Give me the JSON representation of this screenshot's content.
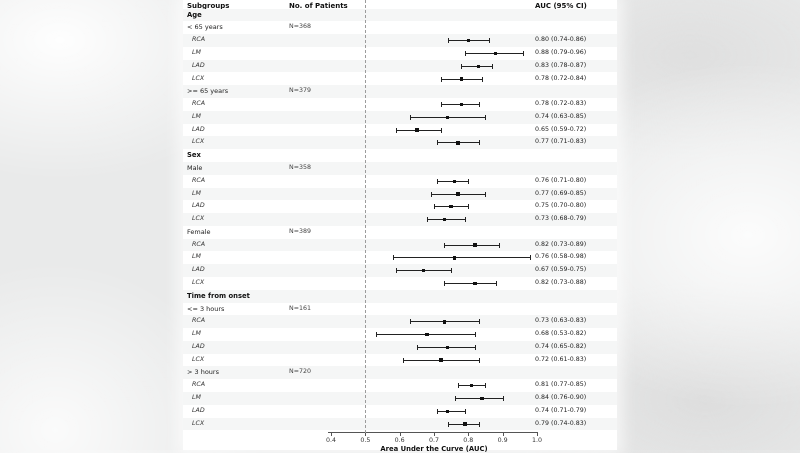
{
  "columns": {
    "subgroups": "Subgroups",
    "patients": "No. of Patients",
    "auc": "AUC (95% CI)"
  },
  "colors": {
    "stripe": "#f5f6f6",
    "marker": "#111111",
    "ci_line": "#222222",
    "reference_dash": "#9c9c9c"
  },
  "chart_data": {
    "type": "forest",
    "xlabel": "Area Under the Curve (AUC)",
    "xlim": [
      0.4,
      1.0
    ],
    "x_ticks": [
      0.4,
      0.5,
      0.6,
      0.7,
      0.8,
      0.9,
      1.0
    ],
    "reference_line": 0.5,
    "column_headers": [
      "Subgroups",
      "No. of Patients",
      "AUC (95% CI)"
    ],
    "sections": [
      {
        "title": "Age",
        "subgroups": [
          {
            "label": "< 65 years",
            "n_label": "N=368",
            "vessels": [
              {
                "name": "RCA",
                "auc": 0.8,
                "ci_low": 0.74,
                "ci_high": 0.86,
                "display": "0.80 (0.74-0.86)"
              },
              {
                "name": "LM",
                "auc": 0.88,
                "ci_low": 0.79,
                "ci_high": 0.96,
                "display": "0.88 (0.79-0.96)"
              },
              {
                "name": "LAD",
                "auc": 0.83,
                "ci_low": 0.78,
                "ci_high": 0.87,
                "display": "0.83 (0.78-0.87)"
              },
              {
                "name": "LCX",
                "auc": 0.78,
                "ci_low": 0.72,
                "ci_high": 0.84,
                "display": "0.78 (0.72-0.84)"
              }
            ]
          },
          {
            "label": ">= 65 years",
            "n_label": "N=379",
            "vessels": [
              {
                "name": "RCA",
                "auc": 0.78,
                "ci_low": 0.72,
                "ci_high": 0.83,
                "display": "0.78 (0.72-0.83)"
              },
              {
                "name": "LM",
                "auc": 0.74,
                "ci_low": 0.63,
                "ci_high": 0.85,
                "display": "0.74 (0.63-0.85)"
              },
              {
                "name": "LAD",
                "auc": 0.65,
                "ci_low": 0.59,
                "ci_high": 0.72,
                "display": "0.65 (0.59-0.72)"
              },
              {
                "name": "LCX",
                "auc": 0.77,
                "ci_low": 0.71,
                "ci_high": 0.83,
                "display": "0.77 (0.71-0.83)"
              }
            ]
          }
        ]
      },
      {
        "title": "Sex",
        "subgroups": [
          {
            "label": "Male",
            "n_label": "N=358",
            "vessels": [
              {
                "name": "RCA",
                "auc": 0.76,
                "ci_low": 0.71,
                "ci_high": 0.8,
                "display": "0.76 (0.71-0.80)"
              },
              {
                "name": "LM",
                "auc": 0.77,
                "ci_low": 0.69,
                "ci_high": 0.85,
                "display": "0.77 (0.69-0.85)"
              },
              {
                "name": "LAD",
                "auc": 0.75,
                "ci_low": 0.7,
                "ci_high": 0.8,
                "display": "0.75 (0.70-0.80)"
              },
              {
                "name": "LCX",
                "auc": 0.73,
                "ci_low": 0.68,
                "ci_high": 0.79,
                "display": "0.73 (0.68-0.79)"
              }
            ]
          },
          {
            "label": "Female",
            "n_label": "N=389",
            "vessels": [
              {
                "name": "RCA",
                "auc": 0.82,
                "ci_low": 0.73,
                "ci_high": 0.89,
                "display": "0.82 (0.73-0.89)"
              },
              {
                "name": "LM",
                "auc": 0.76,
                "ci_low": 0.58,
                "ci_high": 0.98,
                "display": "0.76 (0.58-0.98)"
              },
              {
                "name": "LAD",
                "auc": 0.67,
                "ci_low": 0.59,
                "ci_high": 0.75,
                "display": "0.67 (0.59-0.75)"
              },
              {
                "name": "LCX",
                "auc": 0.82,
                "ci_low": 0.73,
                "ci_high": 0.88,
                "display": "0.82 (0.73-0.88)"
              }
            ]
          }
        ]
      },
      {
        "title": "Time from onset",
        "subgroups": [
          {
            "label": "<= 3 hours",
            "n_label": "N=161",
            "vessels": [
              {
                "name": "RCA",
                "auc": 0.73,
                "ci_low": 0.63,
                "ci_high": 0.83,
                "display": "0.73 (0.63-0.83)"
              },
              {
                "name": "LM",
                "auc": 0.68,
                "ci_low": 0.53,
                "ci_high": 0.82,
                "display": "0.68 (0.53-0.82)"
              },
              {
                "name": "LAD",
                "auc": 0.74,
                "ci_low": 0.65,
                "ci_high": 0.82,
                "display": "0.74 (0.65-0.82)"
              },
              {
                "name": "LCX",
                "auc": 0.72,
                "ci_low": 0.61,
                "ci_high": 0.83,
                "display": "0.72 (0.61-0.83)"
              }
            ]
          },
          {
            "label": "> 3 hours",
            "n_label": "N=720",
            "vessels": [
              {
                "name": "RCA",
                "auc": 0.81,
                "ci_low": 0.77,
                "ci_high": 0.85,
                "display": "0.81 (0.77-0.85)"
              },
              {
                "name": "LM",
                "auc": 0.84,
                "ci_low": 0.76,
                "ci_high": 0.9,
                "display": "0.84 (0.76-0.90)"
              },
              {
                "name": "LAD",
                "auc": 0.74,
                "ci_low": 0.71,
                "ci_high": 0.79,
                "display": "0.74 (0.71-0.79)"
              },
              {
                "name": "LCX",
                "auc": 0.79,
                "ci_low": 0.74,
                "ci_high": 0.83,
                "display": "0.79 (0.74-0.83)"
              }
            ]
          }
        ]
      }
    ]
  }
}
